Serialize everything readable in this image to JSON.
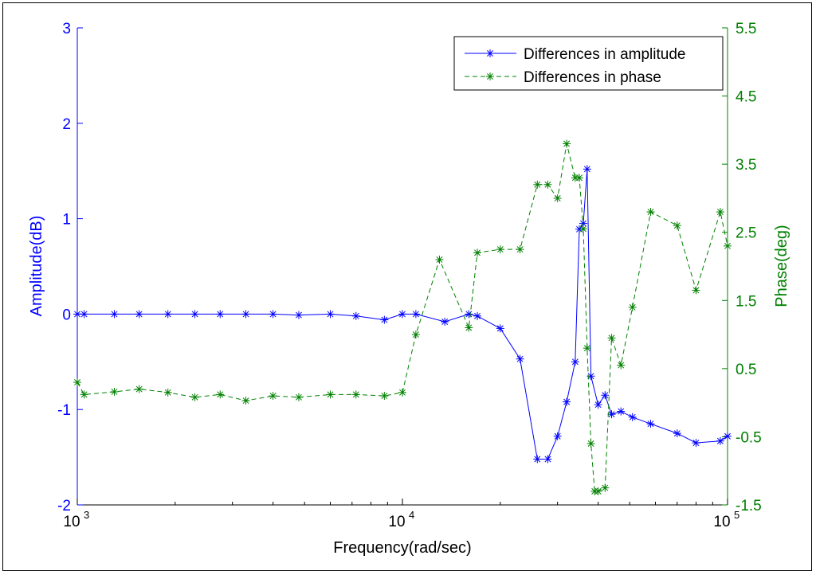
{
  "chart_data": {
    "type": "line",
    "xlabel": "Frequency(rad/sec)",
    "ylabel_left": "Amplitude(dB)",
    "ylabel_right": "Phase(deg)",
    "xscale": "log",
    "xlim": [
      1000,
      100000
    ],
    "ylim_left": [
      -2,
      3
    ],
    "ylim_right": [
      -1.5,
      5.5
    ],
    "x_ticks": [
      {
        "base": "10",
        "exp": "3",
        "value": 1000
      },
      {
        "base": "10",
        "exp": "4",
        "value": 10000
      },
      {
        "base": "10",
        "exp": "5",
        "value": 100000
      }
    ],
    "yticks_left": [
      "3",
      "2",
      "1",
      "0",
      "-1",
      "-2"
    ],
    "yticks_left_values": [
      3,
      2,
      1,
      0,
      -1,
      -2
    ],
    "yticks_right": [
      "5.5",
      "4.5",
      "3.5",
      "2.5",
      "1.5",
      "0.5",
      "-0.5",
      "-1.5"
    ],
    "yticks_right_values": [
      5.5,
      4.5,
      3.5,
      2.5,
      1.5,
      0.5,
      -0.5,
      -1.5
    ],
    "legend_position": "top-right",
    "colors": {
      "amplitude": "#0000ff",
      "phase": "#008000"
    },
    "series": [
      {
        "name": "Differences in amplitude",
        "axis": "left",
        "style": "solid",
        "x": [
          1000,
          1050,
          1300,
          1550,
          1900,
          2300,
          2750,
          3300,
          4000,
          4800,
          6000,
          7200,
          8800,
          10000,
          11000,
          13500,
          16000,
          17000,
          20000,
          23000,
          26000,
          28000,
          30000,
          32000,
          34000,
          35000,
          36000,
          37000,
          38000,
          40000,
          42000,
          44000,
          47000,
          51000,
          58000,
          70000,
          80000,
          95000,
          100000
        ],
        "y": [
          0.0,
          0.0,
          0.0,
          0.0,
          0.0,
          0.0,
          0.0,
          0.0,
          0.0,
          -0.01,
          0.0,
          -0.02,
          -0.06,
          0.0,
          0.0,
          -0.08,
          0.0,
          -0.02,
          -0.15,
          -0.47,
          -1.52,
          -1.52,
          -1.28,
          -0.92,
          -0.5,
          0.89,
          0.95,
          1.52,
          -0.65,
          -0.95,
          -0.85,
          -1.05,
          -1.02,
          -1.08,
          -1.15,
          -1.25,
          -1.35,
          -1.33,
          -1.28
        ]
      },
      {
        "name": "Differences in phase",
        "axis": "right",
        "style": "dashed",
        "x": [
          1000,
          1050,
          1300,
          1550,
          1900,
          2300,
          2750,
          3300,
          4000,
          4800,
          6000,
          7200,
          8800,
          10000,
          11000,
          13000,
          16000,
          17000,
          20000,
          23000,
          26000,
          28000,
          30000,
          32000,
          34000,
          35000,
          36000,
          37000,
          38000,
          39000,
          40000,
          42000,
          44000,
          47000,
          51000,
          58000,
          70000,
          80000,
          95000,
          100000
        ],
        "y": [
          0.3,
          0.12,
          0.16,
          0.2,
          0.15,
          0.08,
          0.12,
          0.03,
          0.1,
          0.08,
          0.12,
          0.12,
          0.1,
          0.15,
          1.0,
          2.1,
          1.1,
          2.2,
          2.25,
          2.25,
          3.2,
          3.2,
          3.0,
          3.8,
          3.3,
          3.3,
          2.55,
          0.8,
          -0.6,
          -1.3,
          -1.3,
          -1.25,
          0.95,
          0.55,
          1.4,
          2.8,
          2.6,
          1.65,
          2.8,
          2.3
        ]
      }
    ]
  }
}
